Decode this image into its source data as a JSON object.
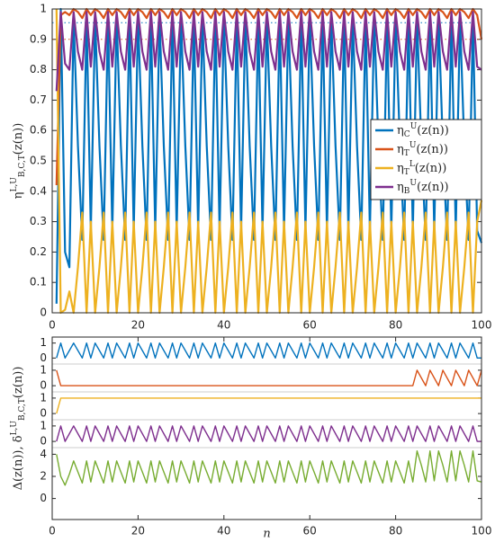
{
  "chart_data": [
    {
      "type": "line",
      "ylabel": "η^{L,U}_{B,C,T}(z(n))",
      "legend": "right",
      "xlim": [
        0,
        100
      ],
      "xticks": [
        0,
        20,
        40,
        60,
        80,
        100
      ],
      "ylim": [
        0,
        1
      ],
      "yticks": [
        0,
        0.1,
        0.2,
        0.3,
        0.4,
        0.5,
        0.6,
        0.7,
        0.8,
        0.9,
        1
      ],
      "reference_lines": [
        {
          "value": 0.955,
          "color": "#0072bd"
        },
        {
          "value": 0.9,
          "color": "#d95319"
        }
      ],
      "x": [
        1,
        2,
        3,
        4,
        5,
        6,
        7,
        8,
        9,
        10,
        11,
        12,
        13,
        14,
        15,
        16,
        17,
        18,
        19,
        20,
        21,
        22,
        23,
        24,
        25,
        26,
        27,
        28,
        29,
        30,
        31,
        32,
        33,
        34,
        35,
        36,
        37,
        38,
        39,
        40,
        41,
        42,
        43,
        44,
        45,
        46,
        47,
        48,
        49,
        50,
        51,
        52,
        53,
        54,
        55,
        56,
        57,
        58,
        59,
        60,
        61,
        62,
        63,
        64,
        65,
        66,
        67,
        68,
        69,
        70,
        71,
        72,
        73,
        74,
        75,
        76,
        77,
        78,
        79,
        80,
        81,
        82,
        83,
        84,
        85,
        86,
        87,
        88,
        89,
        90,
        91,
        92,
        93,
        94,
        95,
        96,
        97,
        98,
        99,
        100
      ],
      "series": [
        {
          "name": "η_C^U(z(n))",
          "color": "#0072bd",
          "values": [
            0.03,
            1,
            0.2,
            0.15,
            0.97,
            0.55,
            0.24,
            0.97,
            0.27,
            0.97,
            0.55,
            0.24,
            0.97,
            0.27,
            0.97,
            0.55,
            0.24,
            0.97,
            0.27,
            0.97,
            0.55,
            0.24,
            0.97,
            0.27,
            0.97,
            0.55,
            0.24,
            0.97,
            0.27,
            0.97,
            0.55,
            0.24,
            0.97,
            0.27,
            0.97,
            0.55,
            0.24,
            0.97,
            0.27,
            0.97,
            0.55,
            0.24,
            0.97,
            0.27,
            0.97,
            0.55,
            0.24,
            0.97,
            0.27,
            0.97,
            0.55,
            0.24,
            0.97,
            0.27,
            0.97,
            0.55,
            0.24,
            0.97,
            0.27,
            0.97,
            0.55,
            0.24,
            0.97,
            0.27,
            0.97,
            0.55,
            0.24,
            0.97,
            0.27,
            0.97,
            0.55,
            0.24,
            0.97,
            0.27,
            0.97,
            0.55,
            0.24,
            0.97,
            0.27,
            0.97,
            0.55,
            0.24,
            0.97,
            0.27,
            0.97,
            0.55,
            0.24,
            0.97,
            0.27,
            0.97,
            0.55,
            0.24,
            0.97,
            0.27,
            0.97,
            0.55,
            0.24,
            0.97,
            0.27,
            0.23
          ]
        },
        {
          "name": "η_T^U(z(n))",
          "color": "#d95319",
          "values": [
            0.42,
            0.98,
            0.99,
            0.98,
            1,
            0.99,
            0.97,
            1,
            0.98,
            1,
            0.99,
            0.97,
            1,
            0.98,
            1,
            0.99,
            0.97,
            1,
            0.98,
            1,
            0.99,
            0.97,
            1,
            0.98,
            1,
            0.99,
            0.97,
            1,
            0.98,
            1,
            0.99,
            0.97,
            1,
            0.98,
            1,
            0.99,
            0.97,
            1,
            0.98,
            1,
            0.99,
            0.97,
            1,
            0.98,
            1,
            0.99,
            0.97,
            1,
            0.98,
            1,
            0.99,
            0.97,
            1,
            0.98,
            1,
            0.99,
            0.97,
            1,
            0.98,
            1,
            0.99,
            0.97,
            1,
            0.98,
            1,
            0.99,
            0.97,
            1,
            0.98,
            1,
            0.99,
            0.97,
            1,
            0.98,
            1,
            0.99,
            0.97,
            1,
            0.98,
            1,
            0.99,
            0.97,
            1,
            0.98,
            1,
            0.99,
            0.97,
            1,
            0.98,
            1,
            0.99,
            0.97,
            1,
            0.98,
            1,
            0.99,
            0.97,
            1,
            0.98,
            0.9
          ]
        },
        {
          "name": "η_T^L(z(n))",
          "color": "#edb120",
          "values": [
            1,
            0,
            0.01,
            0.07,
            0,
            0.15,
            0.33,
            0,
            0.3,
            0,
            0.15,
            0.33,
            0,
            0.3,
            0,
            0.15,
            0.33,
            0,
            0.3,
            0,
            0.15,
            0.33,
            0,
            0.3,
            0,
            0.15,
            0.33,
            0,
            0.3,
            0,
            0.15,
            0.33,
            0,
            0.3,
            0,
            0.15,
            0.33,
            0,
            0.3,
            0,
            0.15,
            0.33,
            0,
            0.3,
            0,
            0.15,
            0.33,
            0,
            0.3,
            0,
            0.15,
            0.33,
            0,
            0.3,
            0,
            0.15,
            0.33,
            0,
            0.3,
            0,
            0.15,
            0.33,
            0,
            0.3,
            0,
            0.15,
            0.33,
            0,
            0.3,
            0,
            0.15,
            0.33,
            0,
            0.3,
            0,
            0.15,
            0.33,
            0,
            0.3,
            0,
            0.15,
            0.33,
            0,
            0.3,
            0,
            0.15,
            0.33,
            0,
            0.3,
            0,
            0.15,
            0.33,
            0,
            0.3,
            0,
            0.15,
            0.33,
            0,
            0.3,
            0.37
          ]
        },
        {
          "name": "η_B^U(z(n))",
          "color": "#7e2f8e",
          "values": [
            0.73,
            0.99,
            0.82,
            0.8,
            0.99,
            0.86,
            0.8,
            0.99,
            0.81,
            0.99,
            0.86,
            0.8,
            0.99,
            0.81,
            0.99,
            0.86,
            0.8,
            0.99,
            0.81,
            0.99,
            0.86,
            0.8,
            0.99,
            0.81,
            0.99,
            0.86,
            0.8,
            0.99,
            0.81,
            0.99,
            0.86,
            0.8,
            0.99,
            0.81,
            0.99,
            0.86,
            0.8,
            0.99,
            0.81,
            0.99,
            0.86,
            0.8,
            0.99,
            0.81,
            0.99,
            0.86,
            0.8,
            0.99,
            0.81,
            0.99,
            0.86,
            0.8,
            0.99,
            0.81,
            0.99,
            0.86,
            0.8,
            0.99,
            0.81,
            0.99,
            0.86,
            0.8,
            0.99,
            0.81,
            0.99,
            0.86,
            0.8,
            0.99,
            0.81,
            0.99,
            0.86,
            0.8,
            0.99,
            0.81,
            0.99,
            0.86,
            0.8,
            0.99,
            0.81,
            0.99,
            0.86,
            0.8,
            0.99,
            0.81,
            0.99,
            0.86,
            0.8,
            0.99,
            0.81,
            0.99,
            0.86,
            0.8,
            0.99,
            0.81,
            0.99,
            0.86,
            0.8,
            0.99,
            0.81,
            0.8
          ]
        }
      ]
    },
    {
      "type": "line",
      "ylim": [
        -0.4,
        1.4
      ],
      "yticks": [
        0,
        1
      ],
      "color": "#0072bd",
      "values": [
        0,
        1,
        0,
        0.5,
        1,
        0.5,
        0,
        1,
        0,
        1,
        0.5,
        0,
        1,
        0,
        1,
        0.5,
        0,
        1,
        0,
        1,
        0.5,
        0,
        1,
        0,
        1,
        0.5,
        0,
        1,
        0,
        1,
        0.5,
        0,
        1,
        0,
        1,
        0.5,
        0,
        1,
        0,
        1,
        0.5,
        0,
        1,
        0,
        1,
        0.5,
        0,
        1,
        0,
        1,
        0.5,
        0,
        1,
        0,
        1,
        0.5,
        0,
        1,
        0,
        1,
        0.5,
        0,
        1,
        0,
        1,
        0.5,
        0,
        1,
        0,
        1,
        0.5,
        0,
        1,
        0,
        1,
        0.5,
        0,
        1,
        0,
        1,
        0.5,
        0,
        1,
        0,
        1,
        0.5,
        0,
        1,
        0,
        1,
        0.5,
        0,
        1,
        0,
        1,
        0.5,
        0,
        1,
        0,
        0
      ]
    },
    {
      "type": "line",
      "ylim": [
        -0.4,
        1.4
      ],
      "yticks": [
        0,
        1
      ],
      "color": "#d95319",
      "values": [
        1,
        0,
        0,
        0,
        0,
        0,
        0,
        0,
        0,
        0,
        0,
        0,
        0,
        0,
        0,
        0,
        0,
        0,
        0,
        0,
        0,
        0,
        0,
        0,
        0,
        0,
        0,
        0,
        0,
        0,
        0,
        0,
        0,
        0,
        0,
        0,
        0,
        0,
        0,
        0,
        0,
        0,
        0,
        0,
        0,
        0,
        0,
        0,
        0,
        0,
        0,
        0,
        0,
        0,
        0,
        0,
        0,
        0,
        0,
        0,
        0,
        0,
        0,
        0,
        0,
        0,
        0,
        0,
        0,
        0,
        0,
        0,
        0,
        0,
        0,
        0,
        0,
        0,
        0,
        0,
        0,
        0,
        0,
        0,
        1,
        0.5,
        0,
        1,
        0.5,
        0,
        1,
        0.5,
        0,
        1,
        0.5,
        0,
        1,
        0.5,
        0,
        1
      ]
    },
    {
      "type": "line",
      "ylim": [
        -0.4,
        1.4
      ],
      "yticks": [
        0,
        1
      ],
      "color": "#edb120",
      "values": [
        0,
        1,
        1,
        1,
        1,
        1,
        1,
        1,
        1,
        1,
        1,
        1,
        1,
        1,
        1,
        1,
        1,
        1,
        1,
        1,
        1,
        1,
        1,
        1,
        1,
        1,
        1,
        1,
        1,
        1,
        1,
        1,
        1,
        1,
        1,
        1,
        1,
        1,
        1,
        1,
        1,
        1,
        1,
        1,
        1,
        1,
        1,
        1,
        1,
        1,
        1,
        1,
        1,
        1,
        1,
        1,
        1,
        1,
        1,
        1,
        1,
        1,
        1,
        1,
        1,
        1,
        1,
        1,
        1,
        1,
        1,
        1,
        1,
        1,
        1,
        1,
        1,
        1,
        1,
        1,
        1,
        1,
        1,
        1,
        1,
        1,
        1,
        1,
        1,
        1,
        1,
        1,
        1,
        1,
        1,
        1,
        1,
        1,
        1,
        1
      ]
    },
    {
      "type": "line",
      "ylim": [
        -0.4,
        1.4
      ],
      "yticks": [
        0,
        1
      ],
      "color": "#7e2f8e",
      "values": [
        0,
        1,
        0,
        0.5,
        1,
        0.5,
        0,
        1,
        0,
        1,
        0.5,
        0,
        1,
        0,
        1,
        0.5,
        0,
        1,
        0,
        1,
        0.5,
        0,
        1,
        0,
        1,
        0.5,
        0,
        1,
        0,
        1,
        0.5,
        0,
        1,
        0,
        1,
        0.5,
        0,
        1,
        0,
        1,
        0.5,
        0,
        1,
        0,
        1,
        0.5,
        0,
        1,
        0,
        1,
        0.5,
        0,
        1,
        0,
        1,
        0.5,
        0,
        1,
        0,
        1,
        0.5,
        0,
        1,
        0,
        1,
        0.5,
        0,
        1,
        0,
        1,
        0.5,
        0,
        1,
        0,
        1,
        0.5,
        0,
        1,
        0,
        1,
        0.5,
        0,
        1,
        0,
        1,
        0.5,
        0,
        1,
        0,
        1,
        0.5,
        0,
        1,
        0,
        1,
        0.5,
        0,
        1,
        0,
        0
      ]
    },
    {
      "type": "line",
      "ylim": [
        -1.9,
        4.6
      ],
      "yticks": [
        0,
        2,
        4
      ],
      "color": "#77ac30",
      "xlabel": "n",
      "ylabel": "Δ(z(n)),  δ^{L,U}_{B,C,T}(z(n))",
      "xlim": [
        0,
        100
      ],
      "xticks": [
        0,
        20,
        40,
        60,
        80,
        100
      ],
      "values": [
        4,
        2,
        1.2,
        2.2,
        3.4,
        2.4,
        1.4,
        3.4,
        1.5,
        3.4,
        2.4,
        1.4,
        3.4,
        1.5,
        3.4,
        2.4,
        1.4,
        3.4,
        1.5,
        3.4,
        2.4,
        1.4,
        3.4,
        1.5,
        3.4,
        2.4,
        1.4,
        3.4,
        1.5,
        3.4,
        2.4,
        1.4,
        3.4,
        1.5,
        3.4,
        2.4,
        1.4,
        3.4,
        1.5,
        3.4,
        2.4,
        1.4,
        3.4,
        1.5,
        3.4,
        2.4,
        1.4,
        3.4,
        1.5,
        3.4,
        2.4,
        1.4,
        3.4,
        1.5,
        3.4,
        2.4,
        1.4,
        3.4,
        1.5,
        3.4,
        2.4,
        1.4,
        3.4,
        1.5,
        3.4,
        2.4,
        1.4,
        3.4,
        1.5,
        3.4,
        2.4,
        1.4,
        3.4,
        1.5,
        3.4,
        2.4,
        1.4,
        3.4,
        1.5,
        3.4,
        2.4,
        1.4,
        3.4,
        1.5,
        4.3,
        3,
        1.5,
        4.3,
        1.6,
        4.3,
        3,
        1.5,
        4.3,
        1.6,
        4.3,
        3,
        1.5,
        4.3,
        1.6,
        1.5
      ]
    }
  ]
}
